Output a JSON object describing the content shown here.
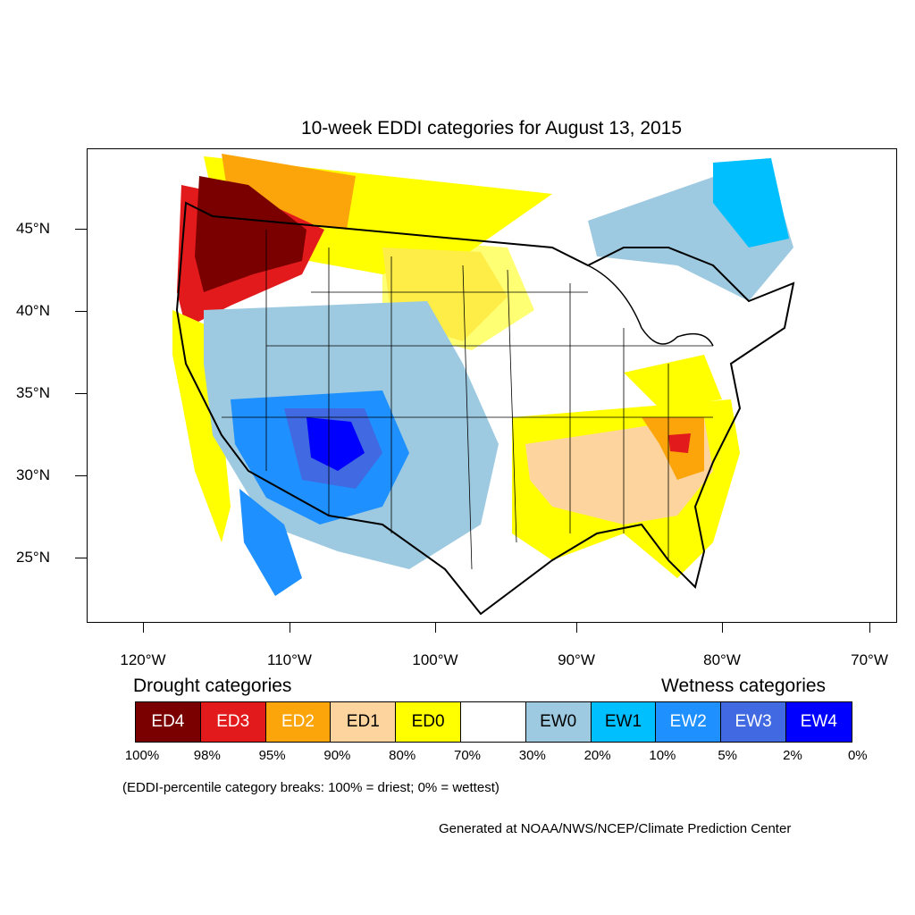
{
  "title": "10-week EDDI categories for August 13, 2015",
  "latitude_labels": [
    "45°N",
    "40°N",
    "35°N",
    "30°N",
    "25°N"
  ],
  "longitude_labels": [
    "120°W",
    "110°W",
    "100°W",
    "90°W",
    "80°W",
    "70°W"
  ],
  "legend": {
    "drought_heading": "Drought categories",
    "wetness_heading": "Wetness categories",
    "categories": [
      {
        "label": "ED4",
        "color": "#7a0000",
        "text_color": "#ffffff"
      },
      {
        "label": "ED3",
        "color": "#e31a1c",
        "text_color": "#ffffff"
      },
      {
        "label": "ED2",
        "color": "#fca50a",
        "text_color": "#ffffff"
      },
      {
        "label": "ED1",
        "color": "#fdd49e",
        "text_color": "#000000"
      },
      {
        "label": "ED0",
        "color": "#ffff00",
        "text_color": "#000000"
      },
      {
        "label": "",
        "color": "#ffffff",
        "text_color": "#000000"
      },
      {
        "label": "EW0",
        "color": "#9ecae1",
        "text_color": "#000000"
      },
      {
        "label": "EW1",
        "color": "#00bfff",
        "text_color": "#000000"
      },
      {
        "label": "EW2",
        "color": "#1e90ff",
        "text_color": "#ffffff"
      },
      {
        "label": "EW3",
        "color": "#4169e1",
        "text_color": "#ffffff"
      },
      {
        "label": "EW4",
        "color": "#0000ff",
        "text_color": "#ffffff"
      }
    ],
    "breaks": [
      "100%",
      "98%",
      "95%",
      "90%",
      "80%",
      "70%",
      "30%",
      "20%",
      "10%",
      "5%",
      "2%",
      "0%"
    ]
  },
  "breaks_note": "(EDDI-percentile category breaks: 100% = driest; 0% = wettest)",
  "credit": "Generated at NOAA/NWS/NCEP/Climate Prediction Center"
}
